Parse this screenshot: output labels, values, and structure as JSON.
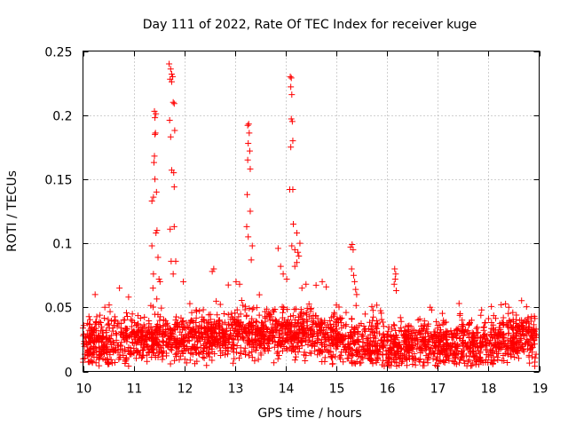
{
  "chart_data": {
    "type": "scatter",
    "title": "Day 111 of 2022, Rate Of TEC Index for receiver kuge",
    "xlabel": "GPS time / hours",
    "ylabel": "ROTI / TECUs",
    "xlim": [
      10,
      19
    ],
    "ylim": [
      0,
      0.25
    ],
    "xticks": [
      10,
      11,
      12,
      13,
      14,
      15,
      16,
      17,
      18,
      19
    ],
    "yticks": [
      0,
      0.05,
      0.1,
      0.15,
      0.2,
      0.25
    ],
    "ytick_labels": [
      "0",
      "0.05",
      "0.1",
      "0.15",
      "0.2",
      "0.25"
    ],
    "grid": true,
    "marker": "+",
    "color": "#ff0000",
    "series": [
      {
        "name": "ROTI",
        "baseline_band": [
          [
            10.0,
            0.022
          ],
          [
            10.5,
            0.022
          ],
          [
            11.0,
            0.024
          ],
          [
            11.5,
            0.026
          ],
          [
            12.0,
            0.025
          ],
          [
            12.5,
            0.027
          ],
          [
            13.0,
            0.028
          ],
          [
            13.5,
            0.029
          ],
          [
            14.0,
            0.032
          ],
          [
            14.5,
            0.03
          ],
          [
            15.0,
            0.025
          ],
          [
            15.5,
            0.02
          ],
          [
            16.0,
            0.02
          ],
          [
            16.5,
            0.022
          ],
          [
            17.0,
            0.021
          ],
          [
            17.5,
            0.019
          ],
          [
            18.0,
            0.022
          ],
          [
            18.5,
            0.028
          ],
          [
            19.0,
            0.022
          ]
        ],
        "points": [
          [
            11.36,
            0.133
          ],
          [
            11.39,
            0.136
          ],
          [
            11.42,
            0.15
          ],
          [
            11.4,
            0.163
          ],
          [
            11.41,
            0.168
          ],
          [
            11.42,
            0.185
          ],
          [
            11.43,
            0.186
          ],
          [
            11.42,
            0.198
          ],
          [
            11.44,
            0.201
          ],
          [
            11.41,
            0.203
          ],
          [
            11.45,
            0.14
          ],
          [
            11.46,
            0.11
          ],
          [
            11.44,
            0.108
          ],
          [
            11.36,
            0.098
          ],
          [
            11.48,
            0.089
          ],
          [
            11.39,
            0.076
          ],
          [
            11.5,
            0.072
          ],
          [
            11.38,
            0.065
          ],
          [
            11.52,
            0.07
          ],
          [
            11.7,
            0.24
          ],
          [
            11.73,
            0.236
          ],
          [
            11.75,
            0.232
          ],
          [
            11.72,
            0.228
          ],
          [
            11.77,
            0.23
          ],
          [
            11.75,
            0.226
          ],
          [
            11.78,
            0.21
          ],
          [
            11.8,
            0.209
          ],
          [
            11.71,
            0.196
          ],
          [
            11.73,
            0.183
          ],
          [
            11.81,
            0.188
          ],
          [
            11.75,
            0.157
          ],
          [
            11.79,
            0.155
          ],
          [
            11.8,
            0.144
          ],
          [
            11.72,
            0.111
          ],
          [
            11.8,
            0.113
          ],
          [
            11.74,
            0.086
          ],
          [
            11.83,
            0.086
          ],
          [
            11.78,
            0.076
          ],
          [
            11.98,
            0.07
          ],
          [
            12.55,
            0.078
          ],
          [
            12.58,
            0.08
          ],
          [
            10.72,
            0.065
          ],
          [
            10.9,
            0.058
          ],
          [
            13.25,
            0.192
          ],
          [
            13.27,
            0.193
          ],
          [
            13.28,
            0.186
          ],
          [
            13.26,
            0.178
          ],
          [
            13.29,
            0.172
          ],
          [
            13.25,
            0.165
          ],
          [
            13.3,
            0.158
          ],
          [
            13.24,
            0.138
          ],
          [
            13.3,
            0.125
          ],
          [
            13.23,
            0.113
          ],
          [
            13.26,
            0.105
          ],
          [
            13.34,
            0.098
          ],
          [
            13.32,
            0.087
          ],
          [
            13.09,
            0.068
          ],
          [
            13.02,
            0.07
          ],
          [
            14.09,
            0.23
          ],
          [
            14.11,
            0.229
          ],
          [
            14.1,
            0.222
          ],
          [
            14.12,
            0.216
          ],
          [
            14.11,
            0.197
          ],
          [
            14.13,
            0.195
          ],
          [
            14.14,
            0.18
          ],
          [
            14.1,
            0.175
          ],
          [
            14.08,
            0.142
          ],
          [
            14.14,
            0.142
          ],
          [
            14.15,
            0.115
          ],
          [
            14.22,
            0.108
          ],
          [
            14.28,
            0.1
          ],
          [
            14.12,
            0.098
          ],
          [
            14.18,
            0.095
          ],
          [
            14.24,
            0.093
          ],
          [
            14.26,
            0.09
          ],
          [
            14.22,
            0.085
          ],
          [
            14.18,
            0.082
          ],
          [
            13.85,
            0.096
          ],
          [
            13.9,
            0.082
          ],
          [
            14.02,
            0.072
          ],
          [
            13.95,
            0.076
          ],
          [
            14.4,
            0.068
          ],
          [
            14.32,
            0.065
          ],
          [
            15.28,
            0.097
          ],
          [
            15.31,
            0.099
          ],
          [
            15.33,
            0.095
          ],
          [
            15.3,
            0.08
          ],
          [
            15.34,
            0.075
          ],
          [
            15.36,
            0.07
          ],
          [
            15.38,
            0.064
          ],
          [
            15.4,
            0.06
          ],
          [
            14.72,
            0.07
          ],
          [
            14.8,
            0.066
          ],
          [
            16.15,
            0.08
          ],
          [
            16.17,
            0.076
          ],
          [
            16.16,
            0.072
          ],
          [
            16.14,
            0.068
          ],
          [
            16.18,
            0.063
          ],
          [
            16.85,
            0.05
          ],
          [
            16.88,
            0.048
          ],
          [
            17.42,
            0.053
          ],
          [
            17.44,
            0.045
          ],
          [
            17.48,
            0.04
          ],
          [
            18.25,
            0.052
          ],
          [
            18.4,
            0.05
          ],
          [
            18.48,
            0.046
          ],
          [
            18.55,
            0.044
          ],
          [
            18.65,
            0.035
          ]
        ]
      }
    ]
  }
}
